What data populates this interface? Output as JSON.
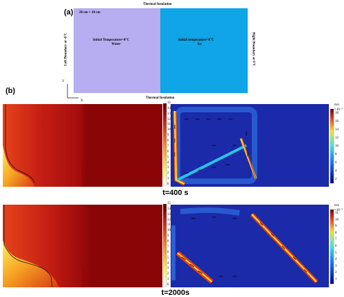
{
  "panel_a": {
    "label": "(a)",
    "top_boundary": "Thermal Insulation",
    "bottom_boundary": "Thermal Insulation",
    "left_boundary": "Left Boundary at -6°C",
    "right_boundary": "Right Boundary at 0°C",
    "size": "20 cm × 10 cm",
    "water_line1": "Initial Temperature=0°C",
    "water_line2": "Water",
    "ice_line1": "Initial temperature=0°C",
    "ice_line2": "Ice",
    "axis_y": "Y",
    "axis_x": "X",
    "colors": {
      "water": "#b6aef0",
      "ice": "#0fa5e6"
    }
  },
  "panel_b": {
    "label": "(b)",
    "caption_1": "t=400 s",
    "caption_2": "t=2000s",
    "velocity_unit": "m/s",
    "velocity_scale": "×10⁻³",
    "temperature_ticks": [
      "0",
      "1",
      "2",
      "3",
      "4",
      "5",
      "6",
      "7",
      "8",
      "9",
      "10",
      "11",
      "12",
      "13",
      "14",
      "15"
    ],
    "velocity_ticks_1": [
      "2",
      "4",
      "6",
      "8",
      "10",
      "12",
      "14",
      "16",
      "18"
    ],
    "velocity_ticks_2": [
      "1",
      "2",
      "3",
      "4",
      "5",
      "6",
      "7",
      "8",
      "9",
      "10",
      "11"
    ]
  }
}
